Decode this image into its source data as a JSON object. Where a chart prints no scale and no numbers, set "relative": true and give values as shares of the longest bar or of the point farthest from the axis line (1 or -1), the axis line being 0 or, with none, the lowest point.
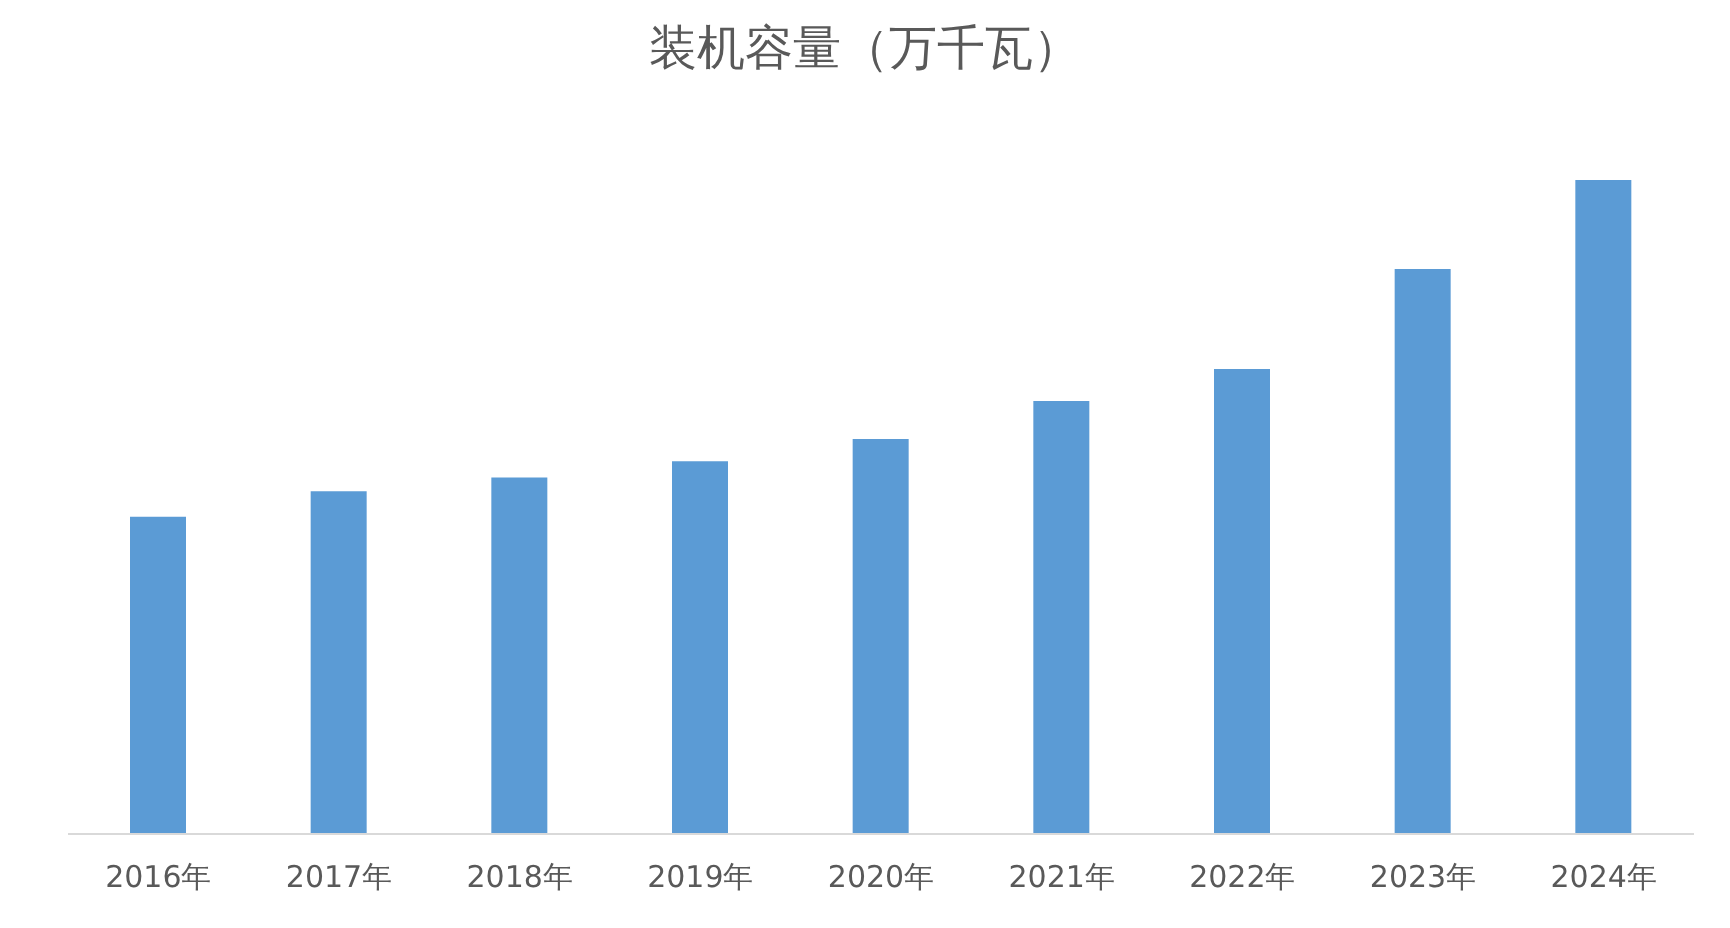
{
  "chart_data": {
    "type": "bar",
    "title": "装机容量（万千瓦）",
    "categories": [
      "2016年",
      "2017年",
      "2018年",
      "2019年",
      "2020年",
      "2021年",
      "2022年",
      "2023年",
      "2024年"
    ],
    "values": [
      0.485,
      0.524,
      0.545,
      0.57,
      0.604,
      0.662,
      0.711,
      0.864,
      1
    ],
    "color": "#5b9bd5",
    "relative": true
  }
}
